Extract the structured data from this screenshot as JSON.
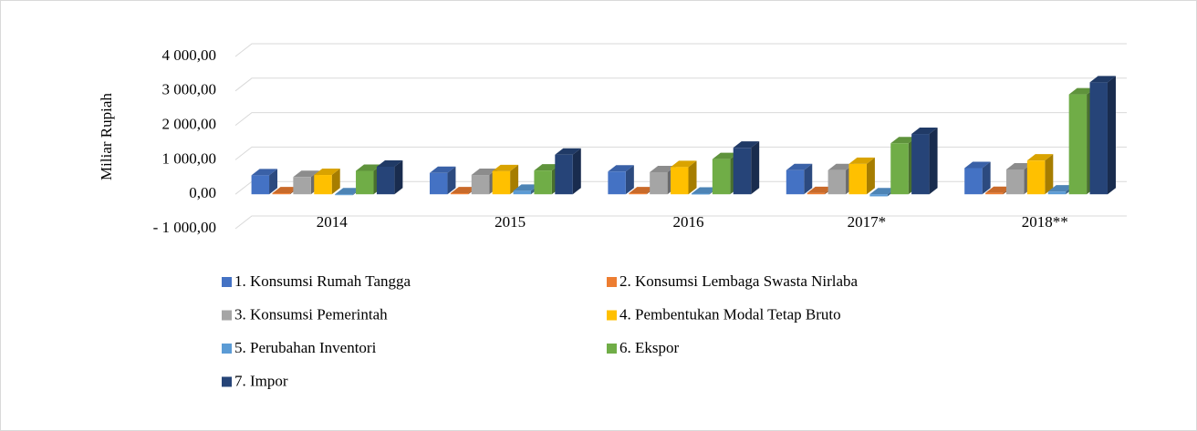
{
  "chart_data": {
    "type": "bar3d",
    "y_label": "Miliar Rupiah",
    "categories": [
      "2014",
      "2015",
      "2016",
      "2017*",
      "2018**"
    ],
    "series": [
      {
        "name": "1. Konsumsi Rumah Tangga",
        "color": "#4472c4",
        "values": [
          550,
          620,
          660,
          700,
          760
        ]
      },
      {
        "name": "2. Konsumsi Lembaga Swasta Nirlaba",
        "color": "#ed7d31",
        "values": [
          30,
          30,
          30,
          35,
          40
        ]
      },
      {
        "name": "3. Konsumsi Pemerintah",
        "color": "#a5a5a5",
        "values": [
          500,
          560,
          640,
          700,
          720
        ]
      },
      {
        "name": "4. Pembentukan Modal Tetap Bruto",
        "color": "#ffc000",
        "values": [
          560,
          670,
          790,
          880,
          980
        ]
      },
      {
        "name": "5. Perubahan Inventori",
        "color": "#5b9bd5",
        "values": [
          -20,
          100,
          20,
          -60,
          80
        ]
      },
      {
        "name": "6. Ekspor",
        "color": "#70ad47",
        "values": [
          680,
          690,
          1020,
          1480,
          2900
        ]
      },
      {
        "name": "7. Impor",
        "color": "#264478",
        "values": [
          800,
          1150,
          1350,
          1750,
          3250
        ]
      }
    ],
    "ylim": [
      -1000,
      4000
    ],
    "yticks": [
      {
        "value": -1000,
        "label": "- 1 000,00"
      },
      {
        "value": 0,
        "label": "0,00"
      },
      {
        "value": 1000,
        "label": "1 000,00"
      },
      {
        "value": 2000,
        "label": "2 000,00"
      },
      {
        "value": 3000,
        "label": "3 000,00"
      },
      {
        "value": 4000,
        "label": "4 000,00"
      }
    ],
    "grid": true
  }
}
